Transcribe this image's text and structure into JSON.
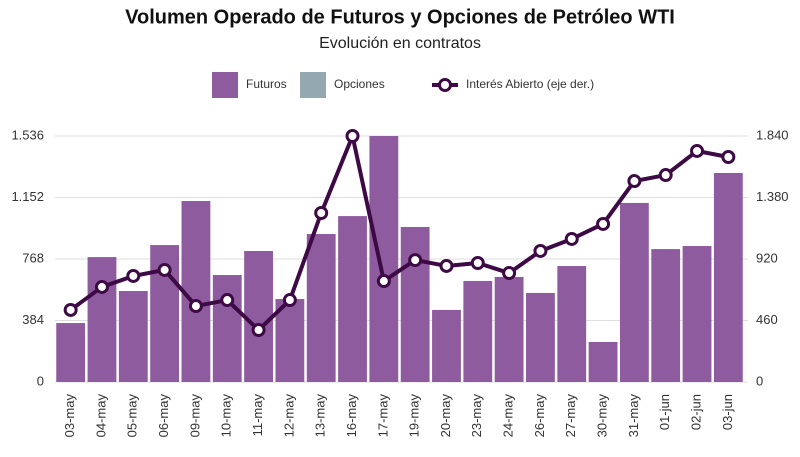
{
  "chart_data": {
    "type": "bar",
    "title": "Volumen Operado de Futuros y Opciones de Petróleo WTI",
    "subtitle": "Evolución en contratos",
    "categories": [
      "03-may",
      "04-may",
      "05-may",
      "06-may",
      "09-may",
      "10-may",
      "11-may",
      "12-may",
      "13-may",
      "16-may",
      "17-may",
      "19-may",
      "20-may",
      "23-may",
      "24-may",
      "26-may",
      "27-may",
      "30-may",
      "31-may",
      "01-jun",
      "02-jun",
      "03-jun"
    ],
    "stacked": true,
    "series": [
      {
        "name": "Futuros",
        "color": "#8f5b9f",
        "values": [
          368,
          780,
          568,
          855,
          1130,
          668,
          818,
          518,
          924,
          1036,
          1536,
          968,
          450,
          631,
          656,
          556,
          724,
          250,
          1118,
          830,
          849,
          1305
        ]
      },
      {
        "name": "Opciones",
        "color": "#93a8b1",
        "values": [
          0,
          0,
          0,
          0,
          0,
          0,
          0,
          0,
          0,
          0,
          0,
          0,
          0,
          0,
          0,
          0,
          0,
          0,
          0,
          0,
          0,
          0
        ]
      },
      {
        "name": "Interés Abierto (eje der.)",
        "color": "#3d0a45",
        "type": "line",
        "axis": "y2",
        "values": [
          539,
          711,
          793,
          838,
          568,
          613,
          389,
          613,
          1264,
          1840,
          755,
          912,
          868,
          890,
          815,
          980,
          1070,
          1182,
          1503,
          1548,
          1728,
          1683
        ]
      }
    ],
    "ylim": [
      0,
      1536
    ],
    "yticks": [
      0,
      384,
      768,
      {
        "value": 1152,
        "label": "1.152"
      },
      {
        "value": 1536,
        "label": "1.536"
      }
    ],
    "y2lim": [
      0,
      1840
    ],
    "y2ticks": [
      0,
      460,
      920,
      {
        "value": 1380,
        "label": "1.380"
      },
      {
        "value": 1840,
        "label": "1.840"
      }
    ],
    "grid": true,
    "legend": "top"
  }
}
